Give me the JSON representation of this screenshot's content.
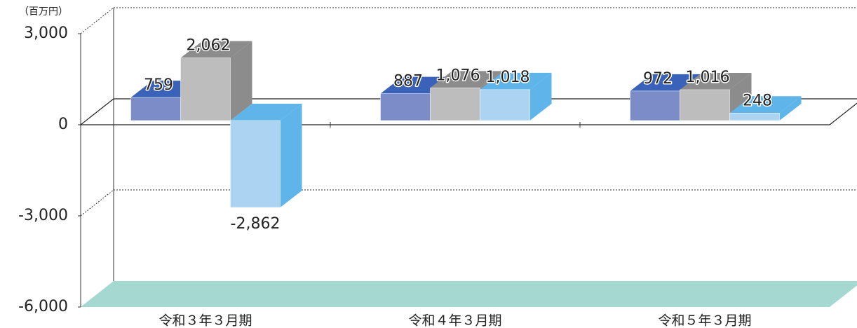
{
  "chart_data": {
    "type": "bar3d",
    "unit_label": "（百万円）",
    "categories": [
      "令和３年３月期",
      "令和４年３月期",
      "令和５年３月期"
    ],
    "series": [
      {
        "color": "#7b8cc8",
        "values": [
          759,
          887,
          972
        ],
        "value_labels": [
          "759",
          "887",
          "972"
        ]
      },
      {
        "color": "#bdbdbd",
        "values": [
          2062,
          1076,
          1016
        ],
        "value_labels": [
          "2,062",
          "1,076",
          "1,016"
        ]
      },
      {
        "color": "#acd4f2",
        "values": [
          -2862,
          1018,
          248
        ],
        "value_labels": [
          "-2,862",
          "1,018",
          "248"
        ]
      }
    ],
    "ylim": [
      -6000,
      3000
    ],
    "yticks": [
      {
        "value": -6000,
        "label": "-6,000"
      },
      {
        "value": -3000,
        "label": "-3,000"
      },
      0,
      {
        "value": 3000,
        "label": "3,000"
      }
    ],
    "grid": true,
    "floor_color": "#a6d8d2"
  }
}
